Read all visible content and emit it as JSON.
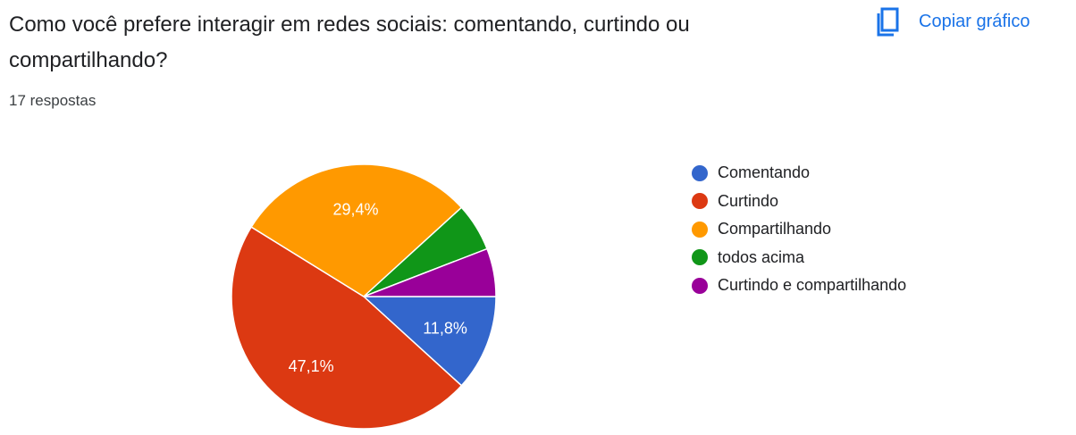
{
  "question": "Como você prefere interagir em redes sociais: comentando, curtindo ou compartilhando?",
  "responses_label": "17 respostas",
  "copy_button_label": "Copiar gráfico",
  "copy_icon": "copy-icon",
  "chart_data": {
    "type": "pie",
    "total": 17,
    "legend_position": "right",
    "slices": [
      {
        "name": "Comentando",
        "count": 2,
        "percent": 11.8,
        "label": "11,8%",
        "color": "#3366cc"
      },
      {
        "name": "Curtindo",
        "count": 8,
        "percent": 47.1,
        "label": "47,1%",
        "color": "#dc3912"
      },
      {
        "name": "Compartilhando",
        "count": 5,
        "percent": 29.4,
        "label": "29,4%",
        "color": "#ff9900"
      },
      {
        "name": "todos acima",
        "count": 1,
        "percent": 5.9,
        "label": "",
        "color": "#109618"
      },
      {
        "name": "Curtindo e compartilhando",
        "count": 1,
        "percent": 5.9,
        "label": "",
        "color": "#990099"
      }
    ]
  }
}
